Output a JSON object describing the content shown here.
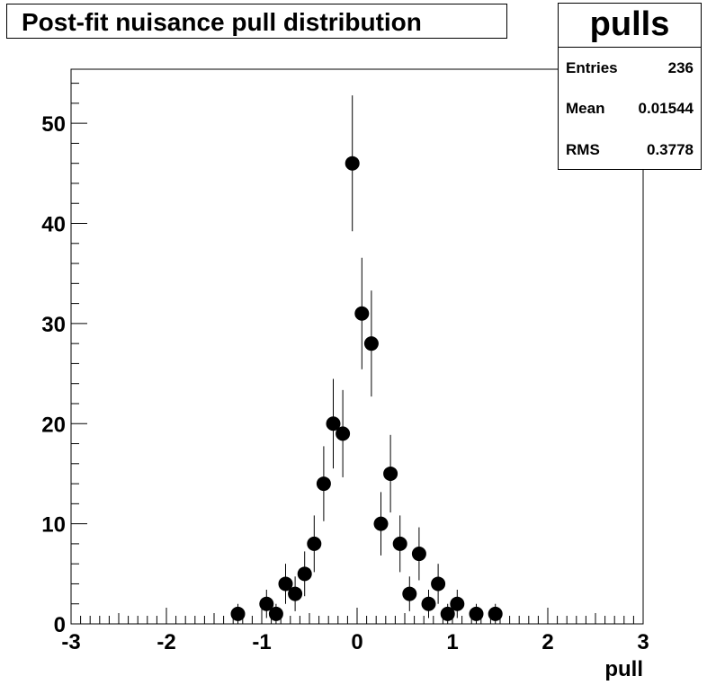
{
  "chart_data": {
    "type": "scatter",
    "title": "Post-fit nuisance pull distribution",
    "xlabel": "pull",
    "ylabel": "",
    "xlim": [
      -3,
      3
    ],
    "ylim": [
      0,
      55.4
    ],
    "x_ticks": [
      "-3",
      "-2",
      "-1",
      "0",
      "1",
      "2",
      "3"
    ],
    "y_ticks": [
      "0",
      "10",
      "20",
      "30",
      "40",
      "50"
    ],
    "grid": false,
    "points": [
      {
        "x": -1.25,
        "y": 1
      },
      {
        "x": -0.95,
        "y": 2
      },
      {
        "x": -0.85,
        "y": 1
      },
      {
        "x": -0.75,
        "y": 4
      },
      {
        "x": -0.65,
        "y": 3
      },
      {
        "x": -0.55,
        "y": 5
      },
      {
        "x": -0.45,
        "y": 8
      },
      {
        "x": -0.35,
        "y": 14
      },
      {
        "x": -0.25,
        "y": 20
      },
      {
        "x": -0.15,
        "y": 19
      },
      {
        "x": -0.05,
        "y": 46
      },
      {
        "x": 0.05,
        "y": 31
      },
      {
        "x": 0.15,
        "y": 28
      },
      {
        "x": 0.25,
        "y": 10
      },
      {
        "x": 0.35,
        "y": 15
      },
      {
        "x": 0.45,
        "y": 8
      },
      {
        "x": 0.55,
        "y": 3
      },
      {
        "x": 0.65,
        "y": 7
      },
      {
        "x": 0.75,
        "y": 2
      },
      {
        "x": 0.85,
        "y": 4
      },
      {
        "x": 0.95,
        "y": 1
      },
      {
        "x": 1.05,
        "y": 2
      },
      {
        "x": 1.25,
        "y": 1
      },
      {
        "x": 1.45,
        "y": 1
      }
    ],
    "stats": {
      "name": "pulls",
      "rows": [
        {
          "key": "Entries",
          "value": "236"
        },
        {
          "key": "Mean",
          "value": "0.01544"
        },
        {
          "key": "RMS",
          "value": "0.3778"
        }
      ]
    }
  }
}
